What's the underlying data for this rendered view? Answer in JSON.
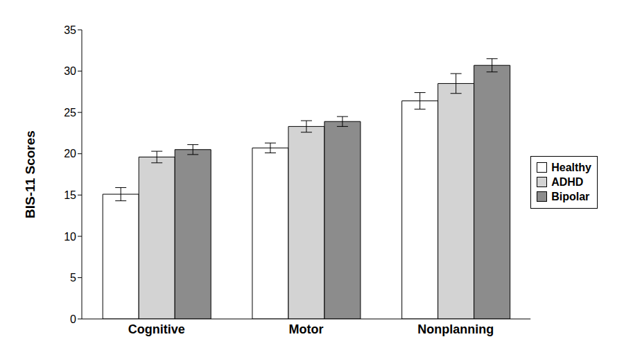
{
  "chart_data": {
    "type": "bar",
    "y_label": "BIS-11 Scores",
    "categories": [
      "Cognitive",
      "Motor",
      "Nonplanning"
    ],
    "series": [
      {
        "name": "Healthy",
        "color": "#ffffff",
        "values": [
          15.1,
          20.7,
          26.4
        ],
        "error": [
          0.8,
          0.6,
          1.0
        ]
      },
      {
        "name": "ADHD",
        "color": "#d3d3d3",
        "values": [
          19.6,
          23.3,
          28.5
        ],
        "error": [
          0.7,
          0.7,
          1.2
        ]
      },
      {
        "name": "Bipolar",
        "color": "#8c8c8c",
        "values": [
          20.5,
          23.9,
          30.7
        ],
        "error": [
          0.6,
          0.6,
          0.8
        ]
      }
    ],
    "ylim": [
      0,
      35
    ],
    "yticks": [
      0,
      5,
      10,
      15,
      20,
      25,
      30,
      35
    ],
    "grid": false,
    "legend": "right"
  }
}
